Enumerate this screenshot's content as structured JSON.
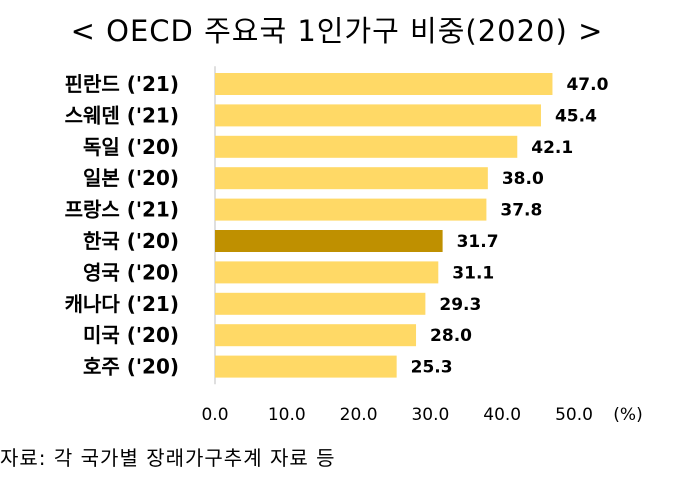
{
  "title": "< OECD 주요국 1인가구 비중(2020) >",
  "source": "자료: 각 국가별 장래가구추계 자료 등",
  "colors": {
    "bar": "#FFD966",
    "highlight": "#BF9000",
    "axis": "#BFBFBF"
  },
  "chart_data": {
    "type": "bar",
    "orientation": "horizontal",
    "title": "< OECD 주요국 1인가구 비중(2020) >",
    "categories": [
      "핀란드 ('21)",
      "스웨덴 ('21)",
      "독일 ('20)",
      "일본 ('20)",
      "프랑스 ('21)",
      "한국 ('20)",
      "영국 ('20)",
      "캐나다 ('21)",
      "미국 ('20)",
      "호주 ('20)"
    ],
    "values": [
      47.0,
      45.4,
      42.1,
      38.0,
      37.8,
      31.7,
      31.1,
      29.3,
      28.0,
      25.3
    ],
    "value_labels": [
      "47.0",
      "45.4",
      "42.1",
      "38.0",
      "37.8",
      "31.7",
      "31.1",
      "29.3",
      "28.0",
      "25.3"
    ],
    "highlight_category": "한국 ('20)",
    "xlim": [
      0,
      50
    ],
    "ticks": [
      "0.0",
      "10.0",
      "20.0",
      "30.0",
      "40.0",
      "50.0"
    ],
    "tick_values": [
      0,
      10,
      20,
      30,
      40,
      50
    ],
    "unit": "(%)",
    "grid": false,
    "legend": "none"
  }
}
